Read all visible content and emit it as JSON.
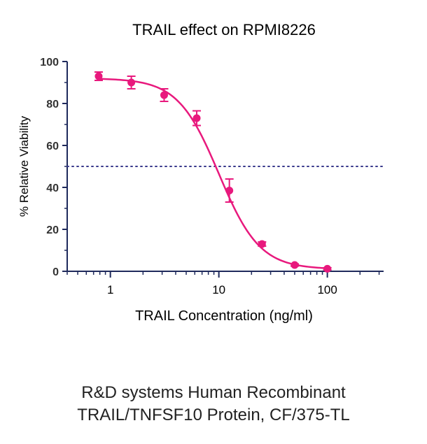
{
  "chart_data": {
    "type": "scatter",
    "title": "TRAIL effect on RPMI8226",
    "xlabel": "TRAIL Concentration (ng/ml)",
    "ylabel": "% Relative Viability",
    "x_scale": "log",
    "xlim": [
      0.4,
      330
    ],
    "ylim": [
      0,
      100
    ],
    "x_ticks": [
      1,
      10,
      100
    ],
    "x_tick_labels": [
      "1",
      "10",
      "100"
    ],
    "y_ticks": [
      0,
      20,
      40,
      60,
      80,
      100
    ],
    "y_tick_labels": [
      "0",
      "20",
      "40",
      "60",
      "80",
      "100"
    ],
    "grid": false,
    "reference_line": {
      "y": 50,
      "style": "dotted",
      "color": "#3a3a8c"
    },
    "series": [
      {
        "color": "#e8197d",
        "x": [
          0.78,
          1.56,
          3.13,
          6.25,
          12.5,
          25,
          50,
          100
        ],
        "y": [
          93,
          90,
          84,
          73,
          38.5,
          13,
          3,
          1.2
        ],
        "error": [
          2,
          3,
          3,
          3.5,
          5.5,
          1,
          0.5,
          0.5
        ],
        "fit_curve": {
          "top": 92,
          "bottom": 1,
          "ec50": 10,
          "hill": 2.3
        }
      }
    ]
  },
  "captions": {
    "line1": "R&D systems Human Recombinant",
    "line2": "TRAIL/TNFSF10 Protein, CF/375-TL"
  }
}
